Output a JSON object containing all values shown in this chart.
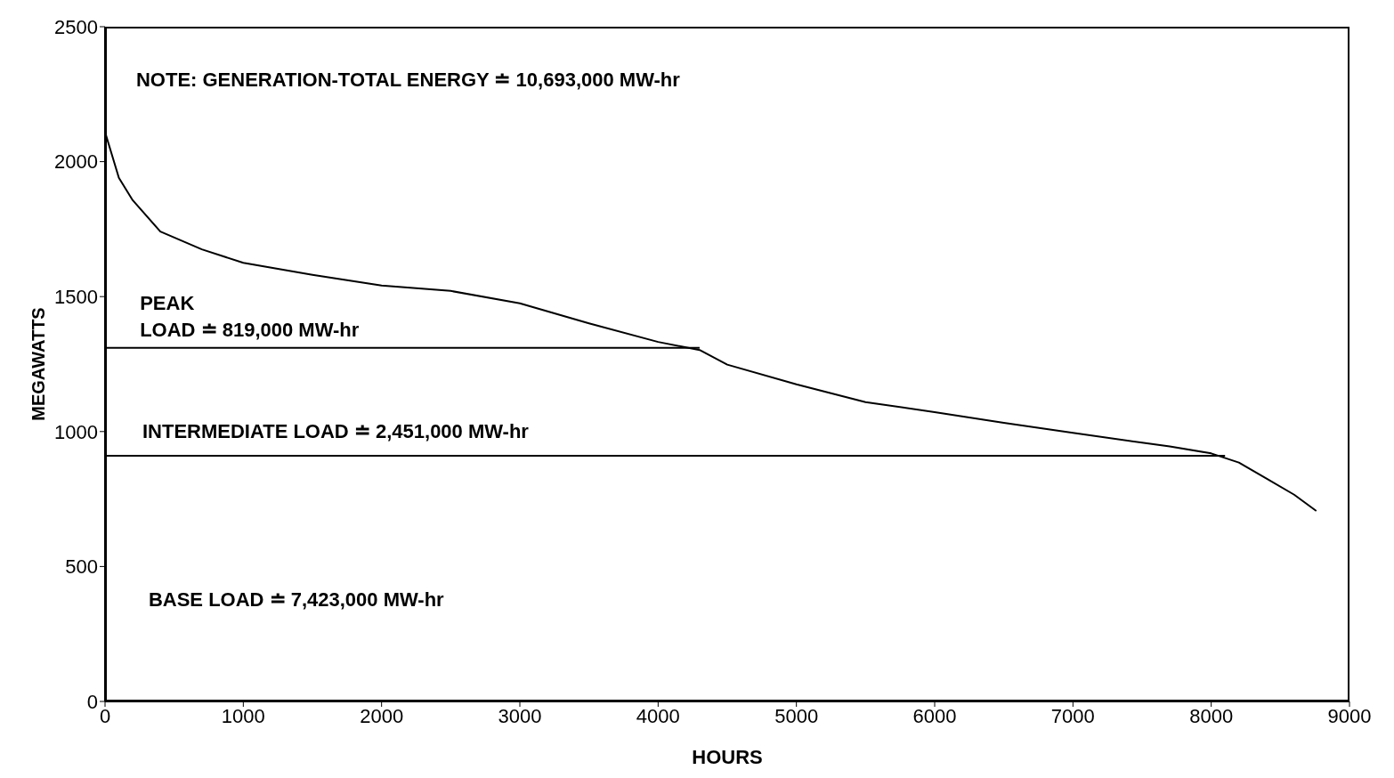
{
  "chart_data": {
    "type": "line",
    "xlabel": "HOURS",
    "ylabel": "MEGAWATTS",
    "xlim": [
      0,
      9000
    ],
    "xticks": [
      0,
      1000,
      2000,
      3000,
      4000,
      5000,
      6000,
      7000,
      8000,
      9000
    ],
    "ylim": [
      0,
      2500
    ],
    "yticks": [
      0,
      500,
      1000,
      1500,
      2000,
      2500
    ],
    "grid": false,
    "marker": "none",
    "line_style": "solid",
    "annotations": [
      "NOTE: GENERATION-TOTAL ENERGY ≐ 10,693,000 MW-hr",
      "PEAK\nLOAD ≐ 819,000 MW-hr",
      "INTERMEDIATE LOAD ≐ 2,451,000 MW-hr",
      "BASE LOAD ≐ 7,423,000 MW-hr"
    ],
    "series": [
      {
        "color": "#000000",
        "x": [
          0,
          100,
          200,
          400,
          700,
          1000,
          1500,
          2000,
          2500,
          3000,
          3500,
          4000,
          4300,
          4500,
          5000,
          5500,
          6000,
          6500,
          7000,
          7500,
          7700,
          8000,
          8200,
          8400,
          8600,
          8760
        ],
        "values": [
          2110,
          1940,
          1857,
          1741,
          1675,
          1625,
          1581,
          1541,
          1521,
          1475,
          1401,
          1332,
          1302,
          1248,
          1175,
          1109,
          1072,
          1032,
          995,
          959,
          945,
          919,
          885,
          826,
          766,
          706
        ]
      },
      {
        "color": "#000000",
        "x": [
          0,
          4300
        ],
        "values": [
          1310,
          1310
        ]
      },
      {
        "color": "#000000",
        "x": [
          0,
          8100
        ],
        "values": [
          910,
          910
        ]
      }
    ]
  }
}
